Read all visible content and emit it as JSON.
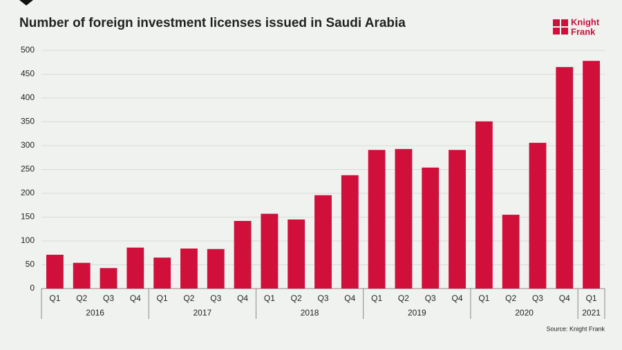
{
  "chart_data": {
    "type": "bar",
    "title": "Number of foreign investment licenses issued in Saudi Arabia",
    "source": "Source: Knight Frank",
    "logo": [
      "Knight",
      "Frank"
    ],
    "color": "#d0103a",
    "groups": [
      {
        "label": "2016",
        "categories": [
          "Q1",
          "Q2",
          "Q3",
          "Q4"
        ],
        "values": [
          71,
          54,
          43,
          86
        ]
      },
      {
        "label": "2017",
        "categories": [
          "Q1",
          "Q2",
          "Q3",
          "Q4"
        ],
        "values": [
          65,
          84,
          83,
          142
        ]
      },
      {
        "label": "2018",
        "categories": [
          "Q1",
          "Q2",
          "Q3",
          "Q4"
        ],
        "values": [
          157,
          145,
          196,
          238
        ]
      },
      {
        "label": "2019",
        "categories": [
          "Q1",
          "Q2",
          "Q3",
          "Q4"
        ],
        "values": [
          291,
          293,
          254,
          291
        ]
      },
      {
        "label": "2020",
        "categories": [
          "Q1",
          "Q2",
          "Q3",
          "Q4"
        ],
        "values": [
          351,
          155,
          306,
          465
        ]
      },
      {
        "label": "2021",
        "categories": [
          "Q1"
        ],
        "values": [
          478
        ]
      }
    ],
    "ylim": [
      0,
      500
    ],
    "yticks": [
      0,
      50,
      100,
      150,
      200,
      250,
      300,
      350,
      400,
      450,
      500
    ],
    "grid": true
  }
}
